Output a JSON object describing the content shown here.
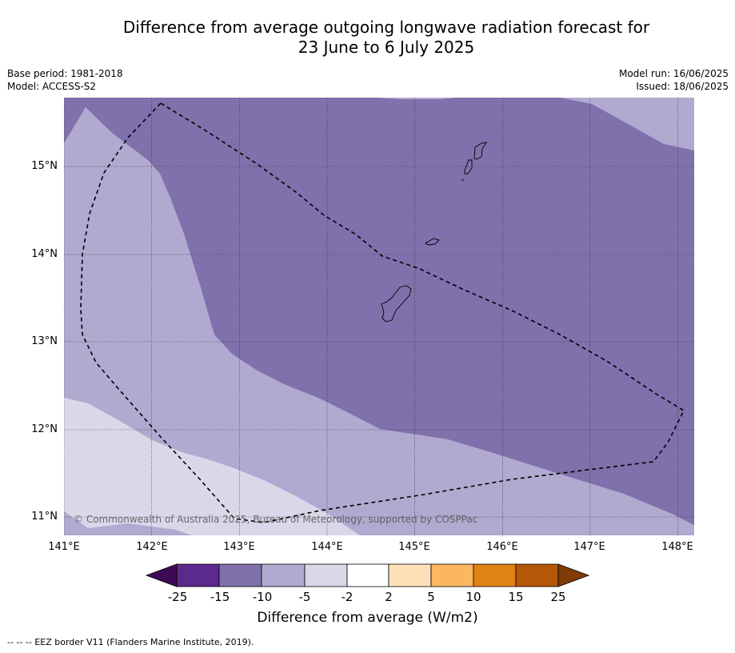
{
  "title_line1": "Difference from average outgoing longwave radiation forecast for",
  "title_line2": "23 June to 6 July 2025",
  "meta_left": {
    "base_period": "Base period: 1981-2018",
    "model": "Model: ACCESS-S2"
  },
  "meta_right": {
    "model_run": "Model run: 16/06/2025",
    "issued": "Issued: 18/06/2025"
  },
  "lat_labels": [
    "15°N",
    "14°N",
    "13°N",
    "12°N",
    "11°N"
  ],
  "lon_labels": [
    "141°E",
    "142°E",
    "143°E",
    "144°E",
    "145°E",
    "146°E",
    "147°E",
    "148°E"
  ],
  "copyright": "© Commonwealth of Australia 2025, Bureau of Meteorology, supported by COSPPac",
  "colorbar": {
    "tick_labels": [
      "-25",
      "-15",
      "-10",
      "-5",
      "-2",
      "2",
      "5",
      "10",
      "15",
      "25"
    ],
    "colors": [
      "#3f0a55",
      "#5b2a8c",
      "#8070ac",
      "#b0a9d0",
      "#d8d8e9",
      "#ffffff",
      "#fde0b6",
      "#fbb760",
      "#e08214",
      "#b35806",
      "#7f3b08"
    ],
    "title": "Difference from average (W/m2)"
  },
  "footer": "--  --  -- EEZ border V11 (Flanders Marine Institute, 2019).",
  "map_colors": {
    "zone_minus10": "#8070ac",
    "zone_minus5": "#b0a9d0",
    "zone_minus2": "#d8d8e9"
  }
}
